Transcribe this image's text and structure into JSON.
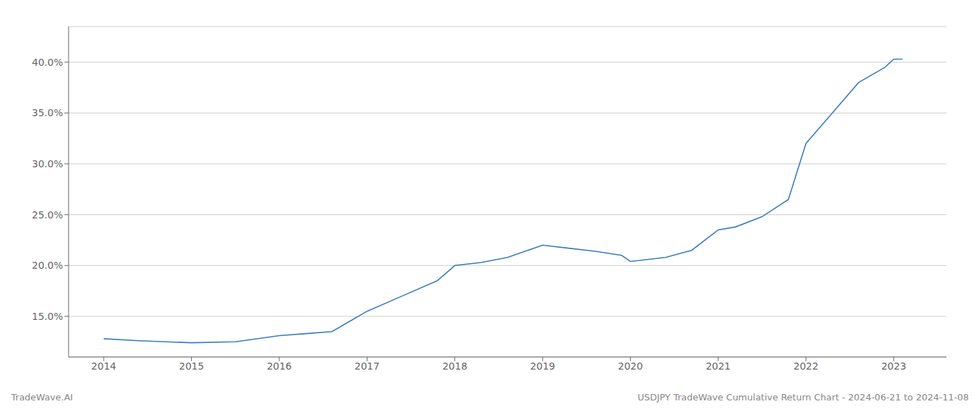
{
  "chart_data": {
    "type": "line",
    "x": [
      2014.0,
      2014.4,
      2015.0,
      2015.5,
      2016.0,
      2016.3,
      2016.6,
      2017.0,
      2017.4,
      2017.8,
      2018.0,
      2018.3,
      2018.6,
      2019.0,
      2019.3,
      2019.6,
      2019.9,
      2020.0,
      2020.4,
      2020.7,
      2021.0,
      2021.2,
      2021.5,
      2021.8,
      2022.0,
      2022.3,
      2022.6,
      2022.9,
      2023.0,
      2023.1
    ],
    "values": [
      12.8,
      12.6,
      12.4,
      12.5,
      13.1,
      13.3,
      13.5,
      15.5,
      17.0,
      18.5,
      20.0,
      20.3,
      20.8,
      22.0,
      21.7,
      21.4,
      21.0,
      20.4,
      20.8,
      21.5,
      23.5,
      23.8,
      24.8,
      26.5,
      32.0,
      35.0,
      38.0,
      39.5,
      40.3,
      40.3
    ],
    "color": "#3a7abf",
    "xlim": [
      2013.6,
      2023.6
    ],
    "xticks": [
      2014,
      2015,
      2016,
      2017,
      2018,
      2019,
      2020,
      2021,
      2022,
      2023
    ],
    "ylim": [
      11.0,
      43.5
    ],
    "yticks": [
      {
        "value": 15.0,
        "label": "15.0%"
      },
      {
        "value": 20.0,
        "label": "20.0%"
      },
      {
        "value": 25.0,
        "label": "25.0%"
      },
      {
        "value": 30.0,
        "label": "30.0%"
      },
      {
        "value": 35.0,
        "label": "35.0%"
      },
      {
        "value": 40.0,
        "label": "40.0%"
      }
    ],
    "grid": true,
    "annotations": [
      "TradeWave.AI",
      "USDJPY TradeWave Cumulative Return Chart - 2024-06-21 to 2024-11-08"
    ]
  }
}
